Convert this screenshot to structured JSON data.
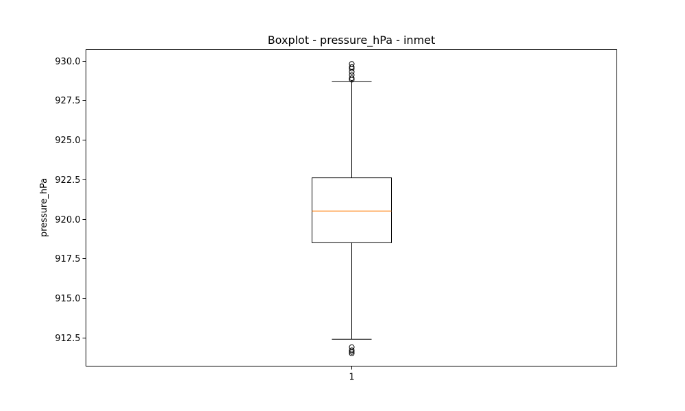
{
  "chart_data": {
    "type": "box",
    "title": "Boxplot - pressure_hPa - inmet",
    "xlabel": "",
    "ylabel": "pressure_hPa",
    "categories": [
      "1"
    ],
    "ylim": [
      910.7,
      930.7
    ],
    "yticks": [
      "912.5",
      "915.0",
      "917.5",
      "920.0",
      "922.5",
      "925.0",
      "927.5",
      "930.0"
    ],
    "grid": false,
    "boxes": [
      {
        "category": "1",
        "whisker_low": 912.4,
        "q1": 918.5,
        "median": 920.5,
        "q3": 922.6,
        "whisker_high": 928.7,
        "outliers": [
          928.8,
          928.9,
          929.1,
          929.3,
          929.5,
          929.6,
          929.8,
          911.9,
          911.7,
          911.6,
          911.5
        ]
      }
    ],
    "colors": {
      "box": "#000000",
      "median": "#ff7f0e",
      "flier": "#000000"
    }
  }
}
